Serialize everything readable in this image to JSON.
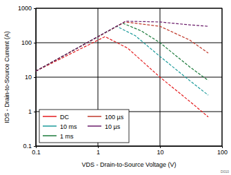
{
  "chart_data": {
    "type": "line",
    "xlabel": "VDS - Drain-to-Source Voltage (V)",
    "ylabel": "IDS - Drain-to-Source Current (A)",
    "annotations": [
      "D010"
    ],
    "log": true,
    "grid": true,
    "legend": "lower left",
    "line_style": "dashed",
    "xlim": [
      0.1,
      100
    ],
    "ylim": [
      0.1,
      1000
    ],
    "xticks": [
      0.1,
      1,
      10,
      100
    ],
    "yticks": [
      0.1,
      1,
      10,
      100,
      1000
    ],
    "series": [
      {
        "name": "DC",
        "color": "#e41a1c",
        "x": [
          0.1,
          1.3,
          3,
          10,
          30,
          60
        ],
        "values": [
          15,
          150,
          70,
          10,
          2,
          0.7
        ]
      },
      {
        "name": "10 ms",
        "color": "#1a9a9a",
        "x": [
          0.1,
          2,
          4,
          10,
          30,
          60
        ],
        "values": [
          15,
          300,
          160,
          40,
          8,
          3
        ]
      },
      {
        "name": "1 ms",
        "color": "#1b7a3a",
        "x": [
          0.1,
          2.5,
          5,
          10,
          30,
          60
        ],
        "values": [
          15,
          370,
          220,
          100,
          20,
          8
        ]
      },
      {
        "name": "100 µs",
        "color": "#c0392b",
        "x": [
          0.1,
          2.7,
          10,
          30,
          60
        ],
        "values": [
          15,
          400,
          300,
          120,
          50
        ]
      },
      {
        "name": "10 µs",
        "color": "#6a1b6a",
        "x": [
          0.1,
          2.8,
          10,
          30,
          60
        ],
        "values": [
          15,
          420,
          400,
          330,
          300
        ]
      }
    ]
  }
}
